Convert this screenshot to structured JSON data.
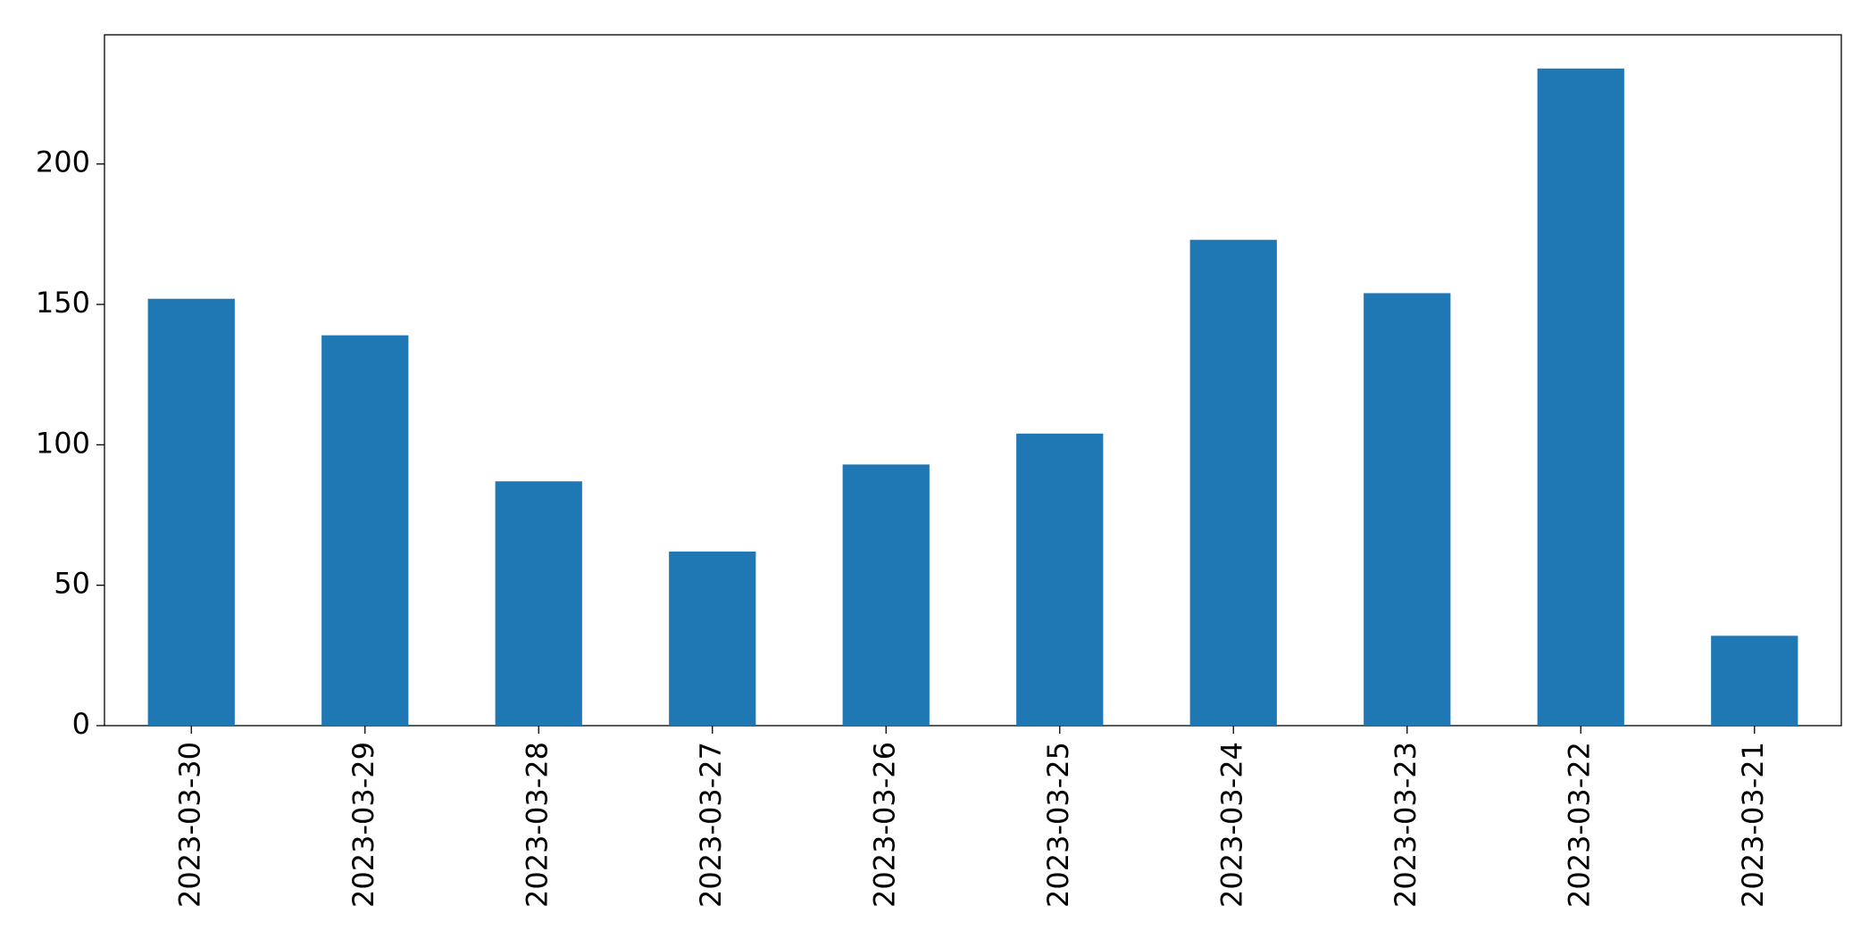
{
  "chart_data": {
    "type": "bar",
    "categories": [
      "2023-03-30",
      "2023-03-29",
      "2023-03-28",
      "2023-03-27",
      "2023-03-26",
      "2023-03-25",
      "2023-03-24",
      "2023-03-23",
      "2023-03-22",
      "2023-03-21"
    ],
    "values": [
      152,
      139,
      87,
      62,
      93,
      104,
      173,
      154,
      234,
      32
    ],
    "color": "#1f77b4",
    "ylim": [
      0,
      246
    ],
    "yticks": [
      0,
      50,
      100,
      150,
      200
    ],
    "grid": false
  }
}
